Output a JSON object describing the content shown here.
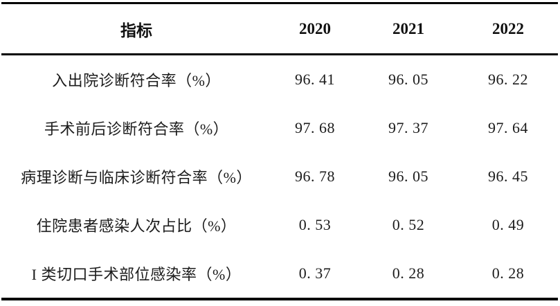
{
  "page": {
    "background": "#ffffff",
    "text_color": "#1c1c1c",
    "rule_color": "#000000"
  },
  "table": {
    "columns": [
      "指标",
      "2020",
      "2021",
      "2022"
    ],
    "rows": [
      {
        "indicator": "入出院诊断符合率（%）",
        "values": [
          "96. 41",
          "96. 05",
          "96. 22"
        ]
      },
      {
        "indicator": "手术前后诊断符合率（%）",
        "values": [
          "97. 68",
          "97. 37",
          "97. 64"
        ]
      },
      {
        "indicator": "病理诊断与临床诊断符合率（%）",
        "values": [
          "96. 78",
          "96. 05",
          "96. 45"
        ]
      },
      {
        "indicator": "住院患者感染人次占比（%）",
        "values": [
          "0. 53",
          "0. 52",
          "0. 49"
        ]
      },
      {
        "indicator": "I 类切口手术部位感染率（%）",
        "values": [
          "0. 37",
          "0. 28",
          "0. 28"
        ]
      }
    ]
  },
  "chart_data": {
    "type": "table",
    "title": "",
    "categories": [
      "2020",
      "2021",
      "2022"
    ],
    "series": [
      {
        "name": "入出院诊断符合率（%）",
        "values": [
          96.41,
          96.05,
          96.22
        ]
      },
      {
        "name": "手术前后诊断符合率（%）",
        "values": [
          97.68,
          97.37,
          97.64
        ]
      },
      {
        "name": "病理诊断与临床诊断符合率（%）",
        "values": [
          96.78,
          96.05,
          96.45
        ]
      },
      {
        "name": "住院患者感染人次占比（%）",
        "values": [
          0.53,
          0.52,
          0.49
        ]
      },
      {
        "name": "I 类切口手术部位感染率（%）",
        "values": [
          0.37,
          0.28,
          0.28
        ]
      }
    ]
  }
}
